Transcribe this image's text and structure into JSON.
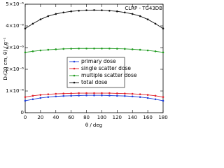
{
  "chart_data": {
    "type": "line",
    "annotation": "CLRP - TG43DB",
    "xlabel": "θ / deg",
    "ylabel": "Dₜ(20 cm, θ) / g⁻¹",
    "x": [
      0,
      10,
      20,
      30,
      40,
      50,
      60,
      70,
      80,
      90,
      100,
      110,
      120,
      130,
      140,
      150,
      160,
      170,
      180
    ],
    "series": [
      {
        "name": "primary dose",
        "color": "#1f3fd9",
        "values": [
          5.5e-07,
          6.2e-07,
          6.8e-07,
          7.2e-07,
          7.5e-07,
          7.7e-07,
          7.8e-07,
          7.9e-07,
          8e-07,
          8e-07,
          8e-07,
          7.9e-07,
          7.8e-07,
          7.7e-07,
          7.5e-07,
          7.2e-07,
          6.8e-07,
          6.2e-07,
          5.5e-07
        ]
      },
      {
        "name": "single scatter dose",
        "color": "#e0202a",
        "values": [
          7.2e-07,
          7.8e-07,
          8.2e-07,
          8.5e-07,
          8.7e-07,
          8.8e-07,
          8.9e-07,
          9e-07,
          9e-07,
          9e-07,
          9e-07,
          9e-07,
          8.9e-07,
          8.8e-07,
          8.7e-07,
          8.5e-07,
          8.2e-07,
          7.8e-07,
          7.2e-07
        ]
      },
      {
        "name": "multiple scatter dose",
        "color": "#1f9a1f",
        "values": [
          2.78e-06,
          2.83e-06,
          2.87e-06,
          2.9e-06,
          2.92e-06,
          2.94e-06,
          2.95e-06,
          2.96e-06,
          2.96e-06,
          2.96e-06,
          2.96e-06,
          2.96e-06,
          2.95e-06,
          2.94e-06,
          2.92e-06,
          2.9e-06,
          2.87e-06,
          2.83e-06,
          2.78e-06
        ]
      },
      {
        "name": "total dose",
        "color": "#111111",
        "values": [
          3.88e-06,
          4.1e-06,
          4.3e-06,
          4.45e-06,
          4.55e-06,
          4.62e-06,
          4.67e-06,
          4.7e-06,
          4.72e-06,
          4.73e-06,
          4.72e-06,
          4.7e-06,
          4.67e-06,
          4.62e-06,
          4.55e-06,
          4.45e-06,
          4.3e-06,
          4.1e-06,
          3.88e-06
        ]
      }
    ],
    "xlim": [
      0,
      180
    ],
    "xticks": [
      0,
      20,
      40,
      60,
      80,
      100,
      120,
      140,
      160,
      180
    ],
    "ylim": [
      0,
      5e-06
    ],
    "yticks": [
      0,
      {
        "value": 1e-06,
        "label": "1×10⁻⁶"
      },
      {
        "value": 2e-06,
        "label": "2×10⁻⁶"
      },
      {
        "value": 3e-06,
        "label": "3×10⁻⁶"
      },
      {
        "value": 4e-06,
        "label": "4×10⁻⁶"
      },
      {
        "value": 5e-06,
        "label": "5×10⁻⁶"
      }
    ],
    "legend": "center",
    "grid": false
  }
}
